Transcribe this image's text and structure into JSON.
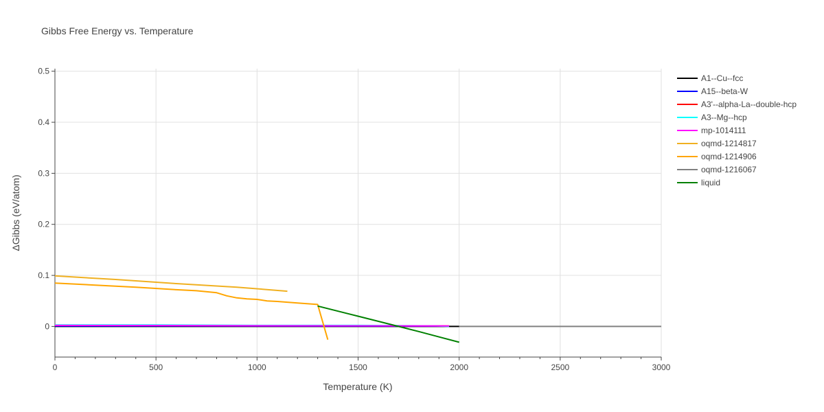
{
  "chart_data": {
    "type": "line",
    "title": "Gibbs Free Energy vs. Temperature",
    "xlabel": "Temperature (K)",
    "ylabel": "ΔGibbs (eV/atom)",
    "xlim": [
      0,
      3000
    ],
    "ylim": [
      -0.06,
      0.505
    ],
    "xticks": [
      0,
      500,
      1000,
      1500,
      2000,
      2500,
      3000
    ],
    "xtick_labels": [
      "0",
      "500",
      "1000",
      "1500",
      "2000",
      "2500",
      "3000"
    ],
    "yticks": [
      0,
      0.1,
      0.2,
      0.3,
      0.4,
      0.5
    ],
    "ytick_labels": [
      "0",
      "0.1",
      "0.2",
      "0.3",
      "0.4",
      "0.5"
    ],
    "grid": true,
    "legend_position": "right",
    "series": [
      {
        "name": "A1--Cu--fcc",
        "color": "#000000",
        "x": [
          0,
          2000
        ],
        "y": [
          0,
          0
        ]
      },
      {
        "name": "A15--beta-W",
        "color": "#0000ff",
        "x": [
          0,
          1950
        ],
        "y": [
          0.001,
          0.0005
        ]
      },
      {
        "name": "A3'--alpha-La--double-hcp",
        "color": "#ff0000",
        "x": [
          0,
          1950
        ],
        "y": [
          0.002,
          0.001
        ]
      },
      {
        "name": "A3--Mg--hcp",
        "color": "#00ffff",
        "x": [
          0,
          500,
          1000,
          1500,
          1900,
          1950
        ],
        "y": [
          0.003,
          0.003,
          0.002,
          0.002,
          0.001,
          0
        ]
      },
      {
        "name": "mp-1014111",
        "color": "#ff00ff",
        "x": [
          0,
          1950
        ],
        "y": [
          0.002,
          0.001
        ]
      },
      {
        "name": "oqmd-1214817",
        "color": "#f0b020",
        "x": [
          0,
          300,
          600,
          900,
          1150
        ],
        "y": [
          0.099,
          0.092,
          0.084,
          0.077,
          0.069
        ]
      },
      {
        "name": "oqmd-1214906",
        "color": "#ffa500",
        "x": [
          0,
          200,
          400,
          600,
          700,
          800,
          850,
          900,
          950,
          1000,
          1050,
          1100,
          1200,
          1300,
          1350
        ],
        "y": [
          0.085,
          0.081,
          0.077,
          0.072,
          0.07,
          0.066,
          0.06,
          0.056,
          0.054,
          0.053,
          0.05,
          0.049,
          0.046,
          0.043,
          -0.026
        ]
      },
      {
        "name": "oqmd-1216067",
        "color": "#808080",
        "x": [
          2000,
          3000
        ],
        "y": [
          0,
          0
        ]
      },
      {
        "name": "liquid",
        "color": "#008000",
        "x": [
          1300,
          1500,
          1700,
          1800,
          2000
        ],
        "y": [
          0.04,
          0.02,
          0.0,
          -0.01,
          -0.031
        ]
      }
    ]
  }
}
